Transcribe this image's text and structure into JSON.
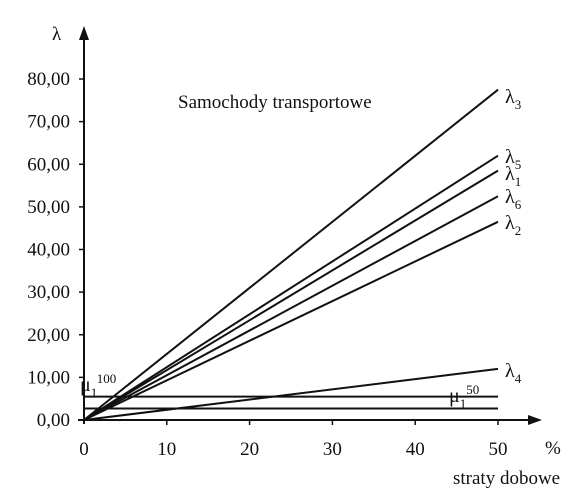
{
  "chart_data": {
    "type": "line",
    "title": "Samochody transportowe",
    "xlabel": "straty dobowe",
    "x_unit": "%",
    "ylabel": "λ",
    "xlim": [
      0,
      50
    ],
    "ylim": [
      0,
      80
    ],
    "x_ticks": [
      "0",
      "10",
      "20",
      "30",
      "40",
      "50"
    ],
    "y_ticks": [
      "0,00",
      "10,00",
      "20,00",
      "30,00",
      "40,00",
      "50,00",
      "60,00",
      "70,00",
      "80,00"
    ],
    "grid": false,
    "legend": "none",
    "series": [
      {
        "name": "λ3",
        "label_base": "λ",
        "label_sub": "3",
        "x": [
          0,
          50
        ],
        "y": [
          0,
          77.5
        ]
      },
      {
        "name": "λ5",
        "label_base": "λ",
        "label_sub": "5",
        "x": [
          0,
          50
        ],
        "y": [
          0,
          62
        ]
      },
      {
        "name": "λ1",
        "label_base": "λ",
        "label_sub": "1",
        "x": [
          0,
          50
        ],
        "y": [
          0,
          58.5
        ]
      },
      {
        "name": "λ6",
        "label_base": "λ",
        "label_sub": "6",
        "x": [
          0,
          50
        ],
        "y": [
          0,
          52.5
        ]
      },
      {
        "name": "λ2",
        "label_base": "λ",
        "label_sub": "2",
        "x": [
          0,
          50
        ],
        "y": [
          0,
          46.5
        ]
      },
      {
        "name": "λ4",
        "label_base": "λ",
        "label_sub": "4",
        "x": [
          0,
          50
        ],
        "y": [
          0,
          12
        ]
      },
      {
        "name": "μ1 100",
        "label_base": "μ",
        "label_sub": "1",
        "label_sup": "100",
        "x": [
          0,
          50
        ],
        "y": [
          5.5,
          5.5
        ]
      },
      {
        "name": "μ1 50",
        "label_base": "μ",
        "label_sub": "1",
        "label_sup": "50",
        "x": [
          0,
          50
        ],
        "y": [
          2.7,
          2.7
        ]
      }
    ]
  }
}
